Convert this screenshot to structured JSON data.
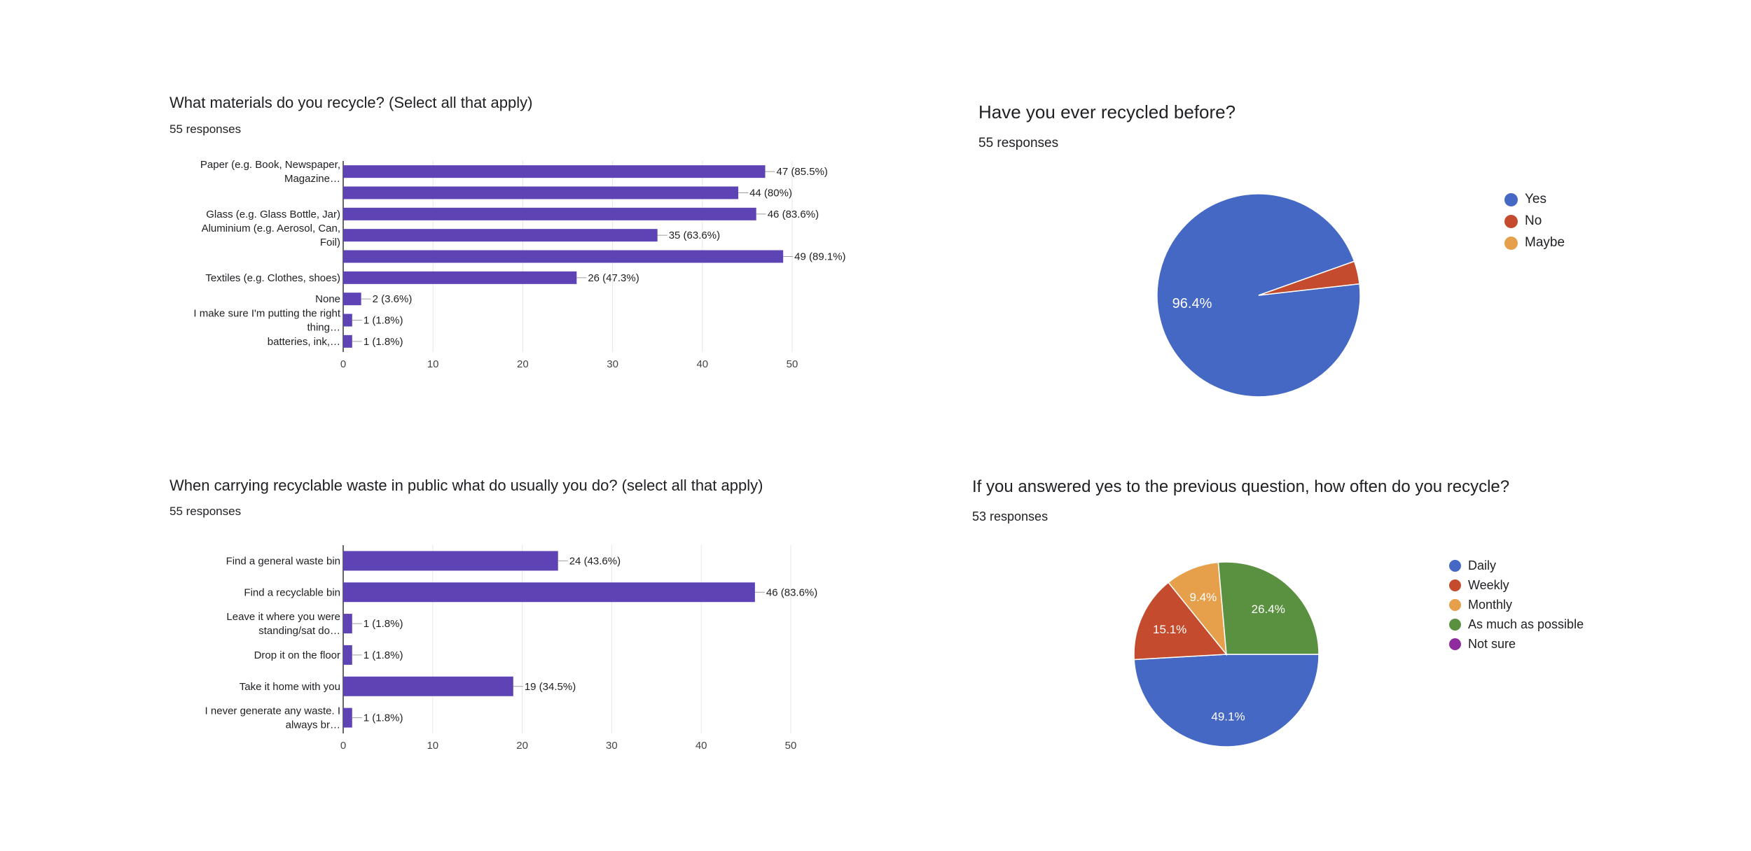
{
  "chart_data": [
    {
      "type": "bar",
      "orientation": "horizontal",
      "title": "What materials do you recycle? (Select all that apply)",
      "subtitle": "55 responses",
      "categories": [
        [
          "Paper (e.g. Book, Newspaper,",
          "Magazine…"
        ],
        [
          ""
        ],
        [
          "Glass (e.g. Glass Bottle, Jar)"
        ],
        [
          "Aluminium (e.g. Aerosol, Can,",
          "Foil)"
        ],
        [
          ""
        ],
        [
          "Textiles  (e.g. Clothes, shoes)"
        ],
        [
          "None"
        ],
        [
          "I make sure I'm putting the right",
          "thing…"
        ],
        [
          "batteries, ink,…"
        ]
      ],
      "values": [
        47,
        44,
        46,
        35,
        49,
        26,
        2,
        1,
        1
      ],
      "data_labels": [
        "47 (85.5%)",
        "44 (80%)",
        "46 (83.6%)",
        "35 (63.6%)",
        "49 (89.1%)",
        "26 (47.3%)",
        "2 (3.6%)",
        "1 (1.8%)",
        "1 (1.8%)"
      ],
      "xlim": [
        0,
        50
      ],
      "xticks": [
        "0",
        "10",
        "20",
        "30",
        "40",
        "50"
      ],
      "grid": true,
      "color": "#5e43b5"
    },
    {
      "type": "pie",
      "title": "Have you ever recycled before?",
      "subtitle": "55 responses",
      "labels": [
        "Yes",
        "No",
        "Maybe"
      ],
      "values": [
        53,
        2,
        0
      ],
      "slice_labels": [
        "96.4%",
        "",
        ""
      ],
      "colors": [
        "#4568c4",
        "#c54b2e",
        "#e6a04b"
      ],
      "legend": "right"
    },
    {
      "type": "bar",
      "orientation": "horizontal",
      "title": "When carrying recyclable waste in public what do usually you do? (select all that apply)",
      "subtitle": "55 responses",
      "categories": [
        [
          "Find a general waste bin"
        ],
        [
          "Find a recyclable bin"
        ],
        [
          "Leave it where you were",
          "standing/sat do…"
        ],
        [
          "Drop it on the floor"
        ],
        [
          "Take it home with you"
        ],
        [
          "I never generate any waste. I",
          "always br…"
        ]
      ],
      "values": [
        24,
        46,
        1,
        1,
        19,
        1
      ],
      "data_labels": [
        "24 (43.6%)",
        "46 (83.6%)",
        "1 (1.8%)",
        "1 (1.8%)",
        "19 (34.5%)",
        "1 (1.8%)"
      ],
      "xlim": [
        0,
        50
      ],
      "xticks": [
        "0",
        "10",
        "20",
        "30",
        "40",
        "50"
      ],
      "grid": true,
      "color": "#5e43b5"
    },
    {
      "type": "pie",
      "title": "If you answered yes to the previous question, how often do you recycle?",
      "subtitle": "53 responses",
      "labels": [
        "Daily",
        "Weekly",
        "Monthly",
        "As much as possible",
        "Not sure"
      ],
      "values": [
        49.1,
        15.1,
        9.4,
        26.4,
        0
      ],
      "slice_labels": [
        "49.1%",
        "15.1%",
        "9.4%",
        "26.4%",
        ""
      ],
      "colors": [
        "#4568c4",
        "#c54b2e",
        "#e6a04b",
        "#5a9140",
        "#8e2c9e"
      ],
      "legend": "right"
    }
  ]
}
